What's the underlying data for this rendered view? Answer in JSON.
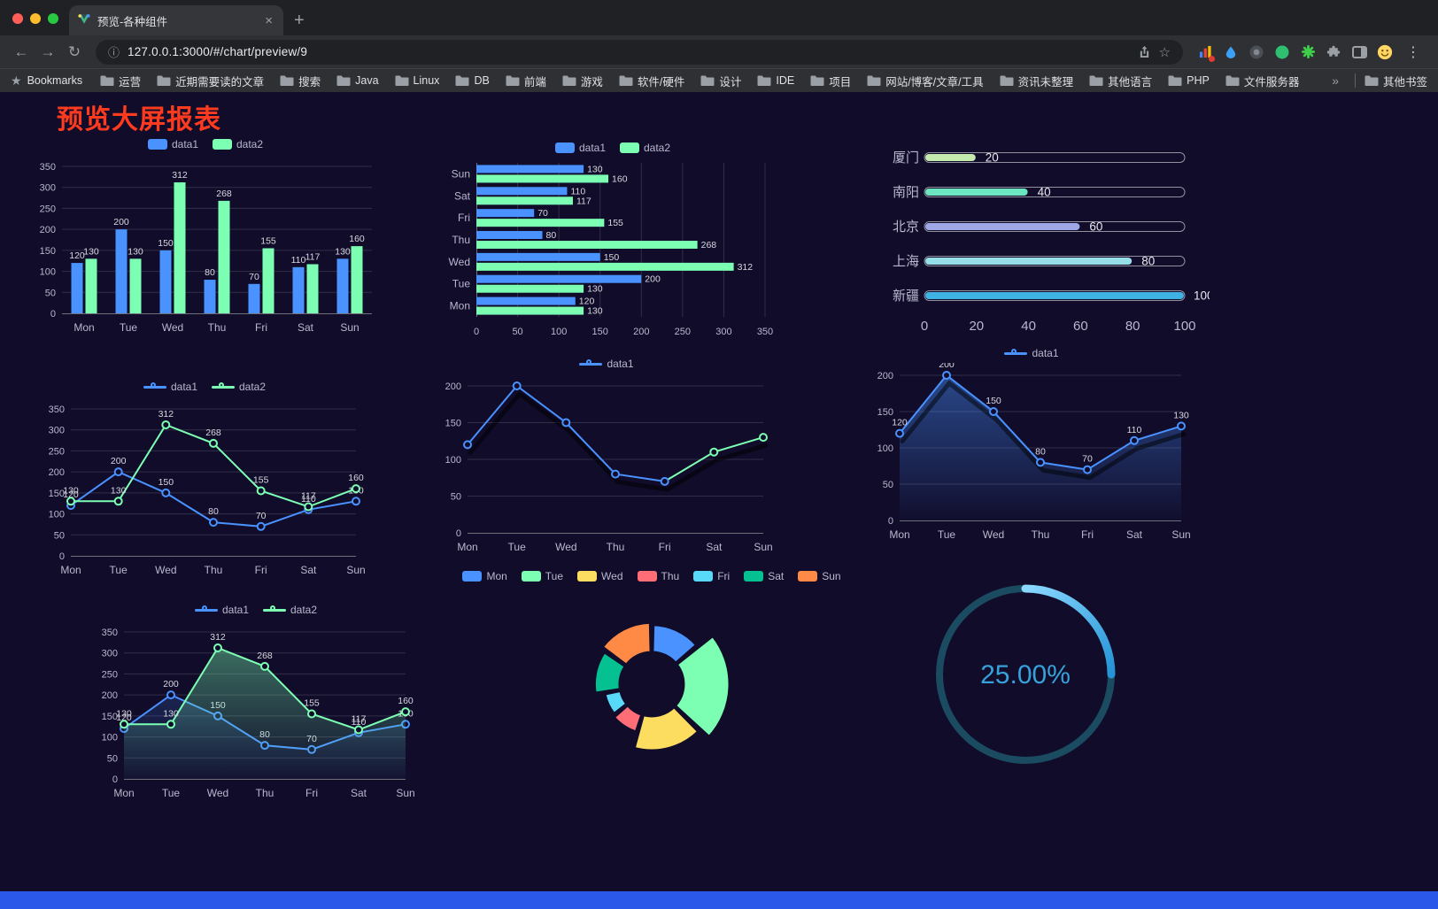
{
  "browser": {
    "tab_title": "预览-各种组件",
    "close_icon": "×",
    "new_tab_icon": "+",
    "back_icon": "←",
    "forward_icon": "→",
    "reload_icon": "↻",
    "info_icon": "ⓘ",
    "url": "127.0.0.1:3000/#/chart/preview/9",
    "star_icon": "☆",
    "menu_icon": "⋮",
    "overflow_icon": "»",
    "bookmarks_label": "Bookmarks",
    "other_bookmarks_label": "其他书签",
    "bookmarks": [
      "运营",
      "近期需要读的文章",
      "搜索",
      "Java",
      "Linux",
      "DB",
      "前端",
      "游戏",
      "软件/硬件",
      "设计",
      "IDE",
      "项目",
      "网站/博客/文章/工具",
      "资讯未整理",
      "其他语言",
      "PHP",
      "文件服务器"
    ]
  },
  "page": {
    "title": "预览大屏报表",
    "title_color": "#ff3b1f",
    "background": "#100C2A",
    "footer_color": "#2b58e8"
  },
  "chart_data": [
    {
      "name": "grouped-bar",
      "type": "bar",
      "categories": [
        "Mon",
        "Tue",
        "Wed",
        "Thu",
        "Fri",
        "Sat",
        "Sun"
      ],
      "series": [
        {
          "name": "data1",
          "color": "#4992ff",
          "values": [
            120,
            200,
            150,
            80,
            70,
            110,
            130
          ]
        },
        {
          "name": "data2",
          "color": "#7cffb2",
          "values": [
            130,
            130,
            312,
            268,
            155,
            117,
            160
          ]
        }
      ],
      "ylim": [
        0,
        350
      ],
      "ytick": 50
    },
    {
      "name": "horizontal-bar",
      "type": "hbar",
      "categories": [
        "Mon",
        "Tue",
        "Wed",
        "Thu",
        "Fri",
        "Sat",
        "Sun"
      ],
      "series": [
        {
          "name": "data1",
          "color": "#4992ff",
          "values": [
            120,
            200,
            150,
            80,
            70,
            110,
            130
          ]
        },
        {
          "name": "data2",
          "color": "#7cffb2",
          "values": [
            130,
            130,
            312,
            268,
            155,
            117,
            160
          ]
        }
      ],
      "xlim": [
        0,
        350
      ],
      "xtick": 50
    },
    {
      "name": "capsule-progress",
      "type": "progress",
      "max": 100,
      "axis_ticks": [
        0,
        20,
        40,
        60,
        80,
        100
      ],
      "items": [
        {
          "label": "厦门",
          "value": 20,
          "color": "#c4ebad"
        },
        {
          "label": "南阳",
          "value": 40,
          "color": "#6be6c1"
        },
        {
          "label": "北京",
          "value": 60,
          "color": "#a0a7e6"
        },
        {
          "label": "上海",
          "value": 80,
          "color": "#96dee8"
        },
        {
          "label": "新疆",
          "value": 100,
          "color": "#3fb1e3"
        }
      ]
    },
    {
      "name": "double-line",
      "type": "line",
      "categories": [
        "Mon",
        "Tue",
        "Wed",
        "Thu",
        "Fri",
        "Sat",
        "Sun"
      ],
      "series": [
        {
          "name": "data1",
          "color": "#4992ff",
          "values": [
            120,
            200,
            150,
            80,
            70,
            110,
            130
          ],
          "labels": true
        },
        {
          "name": "data2",
          "color": "#7cffb2",
          "values": [
            130,
            130,
            312,
            268,
            155,
            117,
            160
          ],
          "labels": true
        }
      ],
      "ylim": [
        0,
        350
      ],
      "ytick": 50
    },
    {
      "name": "single-line",
      "type": "line",
      "shadow": true,
      "categories": [
        "Mon",
        "Tue",
        "Wed",
        "Thu",
        "Fri",
        "Sat",
        "Sun"
      ],
      "series": [
        {
          "name": "data1",
          "color": "#4992ff",
          "color2": "#7cffb2",
          "split_at": 4,
          "values": [
            120,
            200,
            150,
            80,
            70,
            110,
            130
          ]
        }
      ],
      "ylim": [
        0,
        200
      ],
      "ytick": 50
    },
    {
      "name": "area-line",
      "type": "line",
      "shadow": true,
      "categories": [
        "Mon",
        "Tue",
        "Wed",
        "Thu",
        "Fri",
        "Sat",
        "Sun"
      ],
      "series": [
        {
          "name": "data1",
          "color": "#4992ff",
          "values": [
            120,
            200,
            150,
            80,
            70,
            110,
            130
          ],
          "labels": true,
          "area": true,
          "area_opacity": 0.45
        }
      ],
      "ylim": [
        0,
        200
      ],
      "ytick": 50
    },
    {
      "name": "double-area-line",
      "type": "line",
      "categories": [
        "Mon",
        "Tue",
        "Wed",
        "Thu",
        "Fri",
        "Sat",
        "Sun"
      ],
      "series": [
        {
          "name": "data1",
          "color": "#4992ff",
          "values": [
            120,
            200,
            150,
            80,
            70,
            110,
            130
          ],
          "labels": true,
          "area": true,
          "area_opacity": 0.18
        },
        {
          "name": "data2",
          "color": "#7cffb2",
          "values": [
            130,
            130,
            312,
            268,
            155,
            117,
            160
          ],
          "labels": true,
          "area": true,
          "area_opacity": 0.4
        }
      ],
      "ylim": [
        0,
        350
      ],
      "ytick": 50
    },
    {
      "name": "rose-pie",
      "type": "rose",
      "inner_radius": 36,
      "outer_radius": 88,
      "items": [
        {
          "name": "Mon",
          "value": 120,
          "color": "#4992ff"
        },
        {
          "name": "Tue",
          "value": 200,
          "color": "#7cffb2"
        },
        {
          "name": "Wed",
          "value": 150,
          "color": "#fddd60"
        },
        {
          "name": "Thu",
          "value": 80,
          "color": "#ff6e76"
        },
        {
          "name": "Fri",
          "value": 70,
          "color": "#58d9f9"
        },
        {
          "name": "Sat",
          "value": 110,
          "color": "#05c091"
        },
        {
          "name": "Sun",
          "value": 130,
          "color": "#ff8a45"
        }
      ]
    },
    {
      "name": "gauge",
      "type": "gauge",
      "value": 25,
      "label": "25.00%",
      "color": "#37a2da",
      "track_color": "#1b4b60",
      "arc_start_color": "#8ad9ff",
      "arc_end_color": "#2593d6"
    }
  ]
}
